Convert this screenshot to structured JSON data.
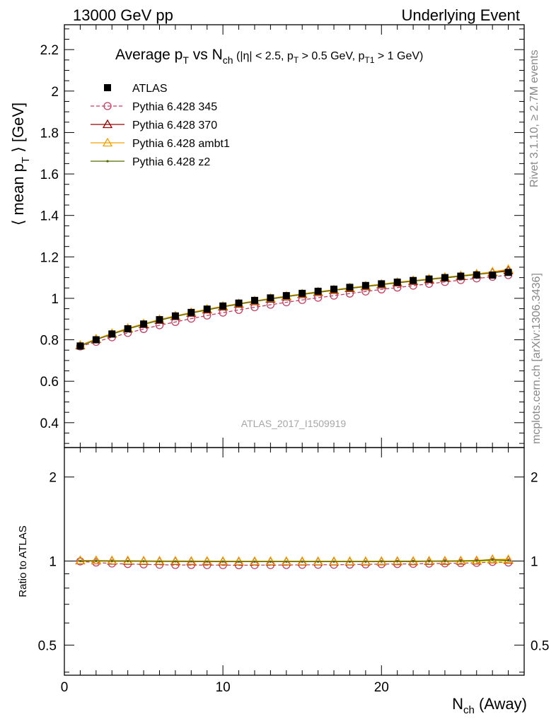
{
  "header": {
    "energy": "13000 GeV pp",
    "process": "Underlying Event"
  },
  "side_labels": {
    "rivet": "Rivet 3.1.10, ≥ 2.7M events",
    "mcplots": "mcplots.cern.ch [arXiv:1306.3436]"
  },
  "watermark": "ATLAS_2017_I1509919",
  "chart_data": [
    {
      "type": "scatter",
      "title": "Average pT vs Nch (|η| < 2.5, pT > 0.5 GeV, pT1 > 1 GeV)",
      "title_parts": {
        "t1": "Average p",
        "t2": "T",
        "t3": " vs N",
        "t4": "ch",
        "t5": " (|η| < 2.5, p",
        "t6": "T",
        "t7": " > 0.5 GeV, p",
        "t8": "T1",
        "t9": " > 1 GeV)"
      },
      "ylabel": "⟨ mean pT ⟩ [GeV]",
      "ylabel_parts": {
        "a": "⟨ mean p",
        "b": "T",
        "c": " ⟩ [GeV]"
      },
      "xlabel": "Nch (Away)",
      "xlabel_parts": {
        "a": "N",
        "b": "ch",
        "c": " (Away)"
      },
      "xlim": [
        0,
        29
      ],
      "ylim": [
        0.28,
        2.32
      ],
      "yticks": [
        "0.4",
        "0.6",
        "0.8",
        "1",
        "1.2",
        "1.4",
        "1.6",
        "1.8",
        "2",
        "2.2"
      ],
      "ytick_values": [
        0.4,
        0.6,
        0.8,
        1.0,
        1.2,
        1.4,
        1.6,
        1.8,
        2.0,
        2.2
      ],
      "legend_position": "top-left",
      "x": [
        1,
        2,
        3,
        4,
        5,
        6,
        7,
        8,
        9,
        10,
        11,
        12,
        13,
        14,
        15,
        16,
        17,
        18,
        19,
        20,
        21,
        22,
        23,
        24,
        25,
        26,
        27,
        28
      ],
      "series": [
        {
          "name": "ATLAS",
          "color": "#000000",
          "marker": "square",
          "values": [
            0.77,
            0.8,
            0.828,
            0.853,
            0.876,
            0.897,
            0.915,
            0.932,
            0.948,
            0.963,
            0.977,
            0.99,
            1.002,
            1.013,
            1.024,
            1.034,
            1.044,
            1.053,
            1.062,
            1.07,
            1.078,
            1.086,
            1.093,
            1.1,
            1.107,
            1.113,
            1.112,
            1.125
          ]
        },
        {
          "name": "Pythia 6.428 345",
          "color": "#c04060",
          "marker": "open-circle",
          "dashed": true,
          "values": [
            0.768,
            0.79,
            0.812,
            0.833,
            0.852,
            0.87,
            0.886,
            0.902,
            0.917,
            0.931,
            0.944,
            0.957,
            0.969,
            0.981,
            0.992,
            1.003,
            1.013,
            1.023,
            1.033,
            1.043,
            1.052,
            1.061,
            1.07,
            1.079,
            1.088,
            1.096,
            1.104,
            1.112
          ]
        },
        {
          "name": "Pythia 6.428 370",
          "color": "#990000",
          "marker": "open-triangle",
          "values": [
            0.772,
            0.802,
            0.829,
            0.853,
            0.875,
            0.895,
            0.913,
            0.929,
            0.945,
            0.959,
            0.972,
            0.985,
            0.997,
            1.008,
            1.019,
            1.029,
            1.039,
            1.048,
            1.057,
            1.066,
            1.075,
            1.083,
            1.091,
            1.099,
            1.107,
            1.115,
            1.125,
            1.135
          ]
        },
        {
          "name": "Pythia 6.428 ambt1",
          "color": "#f0a000",
          "marker": "open-triangle",
          "values": [
            0.774,
            0.804,
            0.831,
            0.856,
            0.878,
            0.898,
            0.916,
            0.932,
            0.948,
            0.962,
            0.975,
            0.988,
            1.0,
            1.011,
            1.022,
            1.032,
            1.042,
            1.051,
            1.06,
            1.069,
            1.078,
            1.086,
            1.094,
            1.102,
            1.11,
            1.118,
            1.128,
            1.14
          ]
        },
        {
          "name": "Pythia 6.428 z2",
          "color": "#556b00",
          "marker": "dot",
          "values": [
            0.77,
            0.8,
            0.827,
            0.852,
            0.874,
            0.894,
            0.912,
            0.929,
            0.944,
            0.959,
            0.972,
            0.985,
            0.997,
            1.008,
            1.019,
            1.029,
            1.039,
            1.048,
            1.057,
            1.066,
            1.075,
            1.083,
            1.091,
            1.099,
            1.107,
            1.115,
            1.123,
            1.131
          ]
        }
      ]
    },
    {
      "type": "scatter",
      "ylabel": "Ratio to ATLAS",
      "xlabel": "Nch (Away)",
      "xlim": [
        0,
        29
      ],
      "ylim": [
        0.39,
        2.55
      ],
      "ylog": true,
      "yticks": [
        "0.5",
        "1",
        "2"
      ],
      "ytick_values": [
        0.5,
        1,
        2
      ],
      "xticks": [
        "0",
        "10",
        "20"
      ],
      "xtick_values": [
        0,
        10,
        20
      ],
      "x": [
        1,
        2,
        3,
        4,
        5,
        6,
        7,
        8,
        9,
        10,
        11,
        12,
        13,
        14,
        15,
        16,
        17,
        18,
        19,
        20,
        21,
        22,
        23,
        24,
        25,
        26,
        27,
        28
      ],
      "band": {
        "color": "#ffff66",
        "lower": [
          0.998,
          0.998,
          0.998,
          0.998,
          0.998,
          0.998,
          0.998,
          0.998,
          0.998,
          0.998,
          0.998,
          0.998,
          0.998,
          0.998,
          0.998,
          0.998,
          0.998,
          0.998,
          0.997,
          0.997,
          0.997,
          0.996,
          0.995,
          0.994,
          0.992,
          0.99,
          0.985,
          0.978
        ],
        "upper": [
          1.002,
          1.002,
          1.002,
          1.002,
          1.002,
          1.002,
          1.002,
          1.002,
          1.002,
          1.002,
          1.002,
          1.002,
          1.002,
          1.002,
          1.002,
          1.002,
          1.002,
          1.002,
          1.003,
          1.003,
          1.003,
          1.004,
          1.005,
          1.006,
          1.008,
          1.01,
          1.015,
          1.022
        ]
      },
      "series": [
        {
          "name": "Pythia 6.428 345",
          "color": "#c04060",
          "marker": "open-circle",
          "dashed": true,
          "values": [
            0.997,
            0.988,
            0.98,
            0.976,
            0.973,
            0.97,
            0.968,
            0.968,
            0.967,
            0.967,
            0.966,
            0.967,
            0.967,
            0.968,
            0.969,
            0.97,
            0.97,
            0.971,
            0.973,
            0.975,
            0.976,
            0.977,
            0.979,
            0.981,
            0.983,
            0.985,
            0.993,
            0.988
          ]
        },
        {
          "name": "Pythia 6.428 370",
          "color": "#990000",
          "marker": "open-triangle",
          "values": [
            1.003,
            1.003,
            1.001,
            1.0,
            0.999,
            0.998,
            0.998,
            0.997,
            0.997,
            0.996,
            0.995,
            0.995,
            0.995,
            0.995,
            0.995,
            0.995,
            0.995,
            0.995,
            0.995,
            0.996,
            0.997,
            0.997,
            0.998,
            0.999,
            1.0,
            1.002,
            1.012,
            1.009
          ]
        },
        {
          "name": "Pythia 6.428 ambt1",
          "color": "#f0a000",
          "marker": "open-triangle",
          "values": [
            1.005,
            1.005,
            1.004,
            1.004,
            1.002,
            1.001,
            1.001,
            1.0,
            1.0,
            0.999,
            0.998,
            0.998,
            0.998,
            0.998,
            0.998,
            0.998,
            0.998,
            0.998,
            0.998,
            0.999,
            1.0,
            1.0,
            1.001,
            1.002,
            1.003,
            1.005,
            1.014,
            1.013
          ]
        },
        {
          "name": "Pythia 6.428 z2",
          "color": "#556b00",
          "marker": "dot",
          "values": [
            1.0,
            1.0,
            0.999,
            0.999,
            0.998,
            0.997,
            0.997,
            0.997,
            0.996,
            0.996,
            0.995,
            0.995,
            0.995,
            0.995,
            0.995,
            0.995,
            0.995,
            0.995,
            0.995,
            0.996,
            0.997,
            0.997,
            0.998,
            0.999,
            1.0,
            1.002,
            1.01,
            1.005
          ]
        }
      ]
    }
  ]
}
